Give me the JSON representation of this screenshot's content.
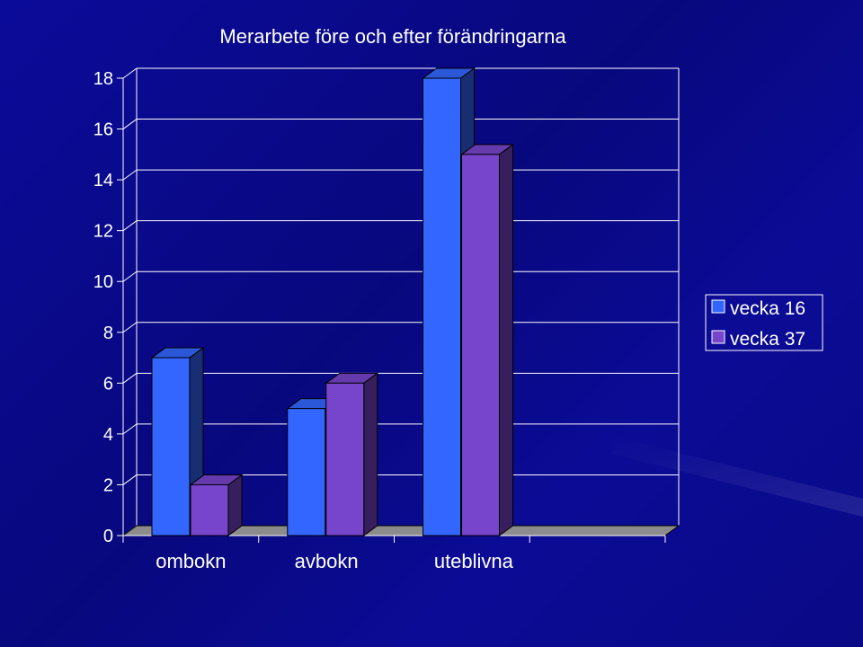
{
  "colors": {
    "background": "#0a0a8c",
    "series_1": "#3366ff",
    "series_2": "#7744cc",
    "floor": "#8c8c8c",
    "grid": "#ffffff"
  },
  "chart_data": {
    "type": "bar",
    "title": "Merarbete före och efter förändringarna",
    "categories": [
      "ombokn",
      "avbokn",
      "uteblivna",
      ""
    ],
    "series": [
      {
        "name": "vecka 16",
        "values": [
          7,
          5,
          18,
          null
        ]
      },
      {
        "name": "vecka 37",
        "values": [
          2,
          6,
          15,
          null
        ]
      }
    ],
    "ylim": [
      0,
      18
    ],
    "yticks": [
      "0",
      "2",
      "4",
      "6",
      "8",
      "10",
      "12",
      "14",
      "16",
      "18"
    ],
    "grid": true,
    "legend_position": "right",
    "style": "3d-clustered-column"
  }
}
